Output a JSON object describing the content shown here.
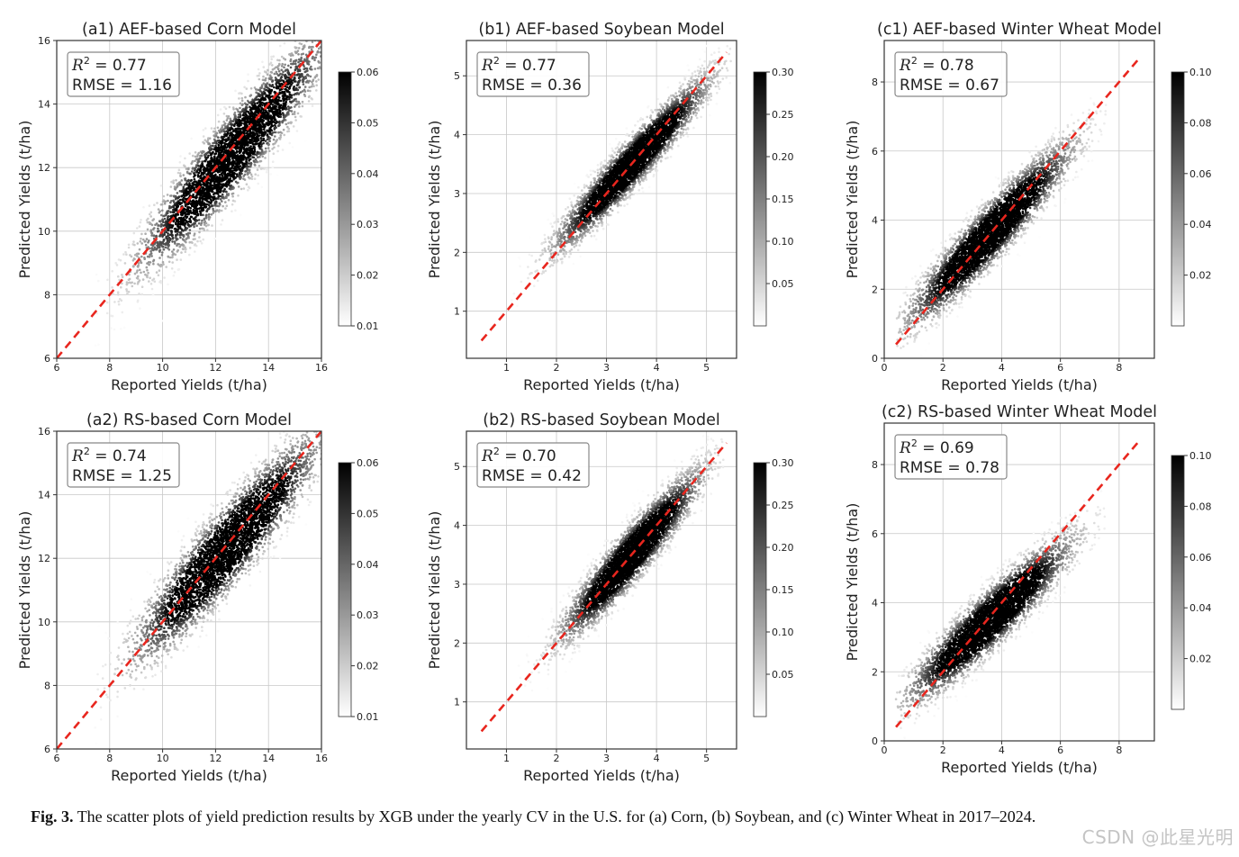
{
  "caption": {
    "label": "Fig. 3.",
    "text": "The scatter plots of yield prediction results by XGB under the yearly CV in the U.S. for (a) Corn, (b) Soybean, and (c) Winter Wheat in 2017–2024."
  },
  "watermark": "CSDN @此星光明",
  "colors": {
    "identity_line": "#e8261e",
    "density_high": "#000000",
    "density_low": "#ffffff",
    "stats_box_border": "#888888"
  },
  "chart_data": [
    {
      "id": "a1",
      "type": "scatter",
      "density_colored": true,
      "title": "(a1) AEF-based Corn Model",
      "xlabel": "Reported Yields (t/ha)",
      "ylabel": "Predicted Yields (t/ha)",
      "xlim": [
        6,
        16
      ],
      "ylim": [
        6,
        16
      ],
      "xticks": [
        6,
        8,
        10,
        12,
        14,
        16
      ],
      "yticks": [
        6,
        8,
        10,
        12,
        14,
        16
      ],
      "stats": {
        "r2_label": "R",
        "r2_sup": "2",
        "r2_value": " = 0.77",
        "rmse": "RMSE = 1.16"
      },
      "identity_line": {
        "x": [
          6,
          16
        ],
        "y": [
          6,
          16
        ]
      },
      "cloud": {
        "x_range": [
          8,
          15.5
        ],
        "center": [
          12.6,
          12.4
        ],
        "slope": 0.95,
        "spread": 0.65
      },
      "colorbar": {
        "min": 0.01,
        "max": 0.06,
        "ticks": [
          "0.01",
          "0.02",
          "0.03",
          "0.04",
          "0.05",
          "0.06"
        ]
      },
      "grid": true
    },
    {
      "id": "b1",
      "type": "scatter",
      "density_colored": true,
      "title": "(b1) AEF-based Soybean Model",
      "xlabel": "Reported Yields (t/ha)",
      "ylabel": "Predicted Yields (t/ha)",
      "xlim": [
        0.2,
        5.6
      ],
      "ylim": [
        0.2,
        5.6
      ],
      "xticks": [
        1,
        2,
        3,
        4,
        5
      ],
      "yticks": [
        1,
        2,
        3,
        4,
        5
      ],
      "stats": {
        "r2_label": "R",
        "r2_sup": "2",
        "r2_value": " = 0.77",
        "rmse": "RMSE = 0.36"
      },
      "identity_line": {
        "x": [
          0.5,
          5.4
        ],
        "y": [
          0.5,
          5.4
        ]
      },
      "cloud": {
        "x_range": [
          1.6,
          4.9
        ],
        "center": [
          3.5,
          3.5
        ],
        "slope": 0.9,
        "spread": 0.22
      },
      "colorbar": {
        "min": 0.0,
        "max": 0.3,
        "ticks": [
          "0.05",
          "0.10",
          "0.15",
          "0.20",
          "0.25",
          "0.30"
        ]
      },
      "grid": true
    },
    {
      "id": "c1",
      "type": "scatter",
      "density_colored": true,
      "title": "(c1) AEF-based Winter Wheat Model",
      "xlabel": "Reported Yields (t/ha)",
      "ylabel": "Predicted Yields (t/ha)",
      "xlim": [
        0,
        9.2
      ],
      "ylim": [
        0,
        9.2
      ],
      "xticks": [
        0,
        2,
        4,
        6,
        8
      ],
      "yticks": [
        0,
        2,
        4,
        6,
        8
      ],
      "stats": {
        "r2_label": "R",
        "r2_sup": "2",
        "r2_value": " = 0.78",
        "rmse": "RMSE = 0.67"
      },
      "identity_line": {
        "x": [
          0.4,
          8.7
        ],
        "y": [
          0.4,
          8.7
        ]
      },
      "cloud": {
        "x_range": [
          1.0,
          7.0
        ],
        "center": [
          3.6,
          3.6
        ],
        "slope": 0.88,
        "spread": 0.45
      },
      "colorbar": {
        "min": 0.0,
        "max": 0.1,
        "ticks": [
          "0.02",
          "0.04",
          "0.06",
          "0.08",
          "0.10"
        ]
      },
      "grid": true
    },
    {
      "id": "a2",
      "type": "scatter",
      "density_colored": true,
      "title": "(a2) RS-based Corn Model",
      "xlabel": "Reported Yields (t/ha)",
      "ylabel": "Predicted Yields (t/ha)",
      "xlim": [
        6,
        16
      ],
      "ylim": [
        6,
        16
      ],
      "xticks": [
        6,
        8,
        10,
        12,
        14,
        16
      ],
      "yticks": [
        6,
        8,
        10,
        12,
        14,
        16
      ],
      "stats": {
        "r2_label": "R",
        "r2_sup": "2",
        "r2_value": " = 0.74",
        "rmse": "RMSE = 1.25"
      },
      "identity_line": {
        "x": [
          6,
          16
        ],
        "y": [
          6,
          16
        ]
      },
      "cloud": {
        "x_range": [
          8,
          15.5
        ],
        "center": [
          12.4,
          12.3
        ],
        "slope": 0.92,
        "spread": 0.68
      },
      "colorbar": {
        "min": 0.01,
        "max": 0.06,
        "ticks": [
          "0.01",
          "0.02",
          "0.03",
          "0.04",
          "0.05",
          "0.06"
        ]
      },
      "grid": true
    },
    {
      "id": "b2",
      "type": "scatter",
      "density_colored": true,
      "title": "(b2) RS-based Soybean Model",
      "xlabel": "Reported Yields (t/ha)",
      "ylabel": "Predicted Yields (t/ha)",
      "xlim": [
        0.2,
        5.6
      ],
      "ylim": [
        0.2,
        5.6
      ],
      "xticks": [
        1,
        2,
        3,
        4,
        5
      ],
      "yticks": [
        1,
        2,
        3,
        4,
        5
      ],
      "stats": {
        "r2_label": "R",
        "r2_sup": "2",
        "r2_value": " = 0.70",
        "rmse": "RMSE = 0.42"
      },
      "identity_line": {
        "x": [
          0.5,
          5.4
        ],
        "y": [
          0.5,
          5.4
        ]
      },
      "cloud": {
        "x_range": [
          1.8,
          4.8
        ],
        "center": [
          3.5,
          3.5
        ],
        "slope": 0.95,
        "spread": 0.25
      },
      "colorbar": {
        "min": 0.0,
        "max": 0.3,
        "ticks": [
          "0.05",
          "0.10",
          "0.15",
          "0.20",
          "0.25",
          "0.30"
        ]
      },
      "grid": true
    },
    {
      "id": "c2",
      "type": "scatter",
      "density_colored": true,
      "title": "(c2) RS-based Winter Wheat Model",
      "xlabel": "Reported Yields (t/ha)",
      "ylabel": "Predicted Yields (t/ha)",
      "xlim": [
        0,
        9.2
      ],
      "ylim": [
        0,
        9.2
      ],
      "xticks": [
        0,
        2,
        4,
        6,
        8
      ],
      "yticks": [
        0,
        2,
        4,
        6,
        8
      ],
      "stats": {
        "r2_label": "R",
        "r2_sup": "2",
        "r2_value": " = 0.69",
        "rmse": "RMSE = 0.78"
      },
      "identity_line": {
        "x": [
          0.4,
          8.7
        ],
        "y": [
          0.4,
          8.7
        ]
      },
      "cloud": {
        "x_range": [
          1.0,
          7.0
        ],
        "center": [
          3.6,
          3.5
        ],
        "slope": 0.78,
        "spread": 0.45
      },
      "colorbar": {
        "min": 0.0,
        "max": 0.1,
        "ticks": [
          "0.02",
          "0.04",
          "0.06",
          "0.08",
          "0.10"
        ]
      },
      "grid": true
    }
  ]
}
